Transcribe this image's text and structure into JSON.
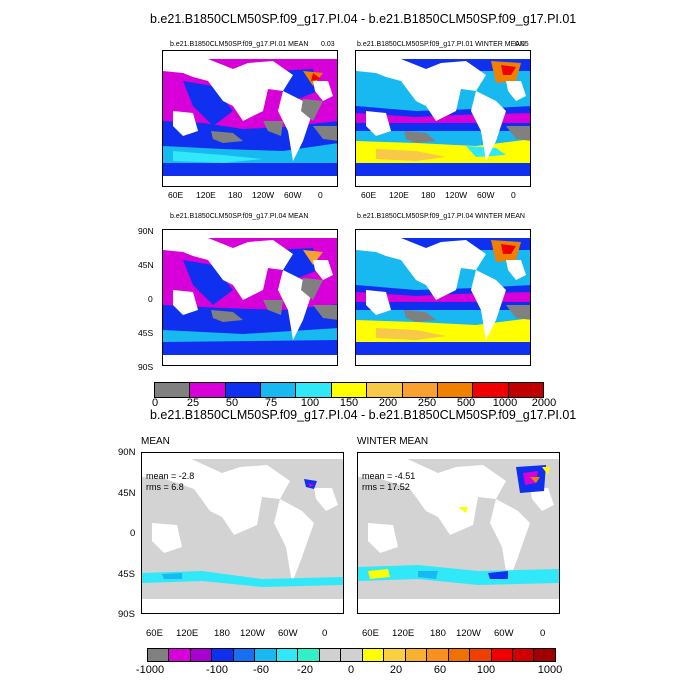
{
  "top": {
    "title": "b.e21.B1850CLM50SP.f09_g17.PI.04 - b.e21.B1850CLM50SP.f09_g17.PI.01",
    "panels": [
      {
        "title": "b.e21.B1850CLM50SP.f09_g17.PI.01 MEAN",
        "corner": "0.03"
      },
      {
        "title": "b.e21.B1850CLM50SP.f09_g17.PI.01 WINTER MEAN",
        "corner": "0.05"
      },
      {
        "title": "b.e21.B1850CLM50SP.f09_g17.PI.04 MEAN",
        "corner": ""
      },
      {
        "title": "b.e21.B1850CLM50SP.f09_g17.PI.04 WINTER MEAN",
        "corner": ""
      }
    ],
    "lon_labels": [
      "60E",
      "120E",
      "180",
      "120W",
      "60W",
      "0"
    ],
    "lat_labels": [
      "90N",
      "45N",
      "0",
      "45S",
      "90S"
    ],
    "colorbar": {
      "colors": [
        "#808080",
        "#d800d8",
        "#a800d0",
        "#1030f0",
        "#18b8f0",
        "#30e8f8",
        "#ffff00",
        "#f8c848",
        "#f8a030",
        "#f08000",
        "#f00000",
        "#c00000"
      ],
      "labels": [
        "0",
        "25",
        "50",
        "75",
        "100",
        "150",
        "200",
        "250",
        "500",
        "1000",
        "2000"
      ]
    }
  },
  "bottom": {
    "title": "b.e21.B1850CLM50SP.f09_g17.PI.04 - b.e21.B1850CLM50SP.f09_g17.PI.01",
    "panels": [
      {
        "title": "MEAN",
        "mean": "mean = -2.8",
        "rms": "rms = 6.8"
      },
      {
        "title": "WINTER MEAN",
        "mean": "mean = -4.51",
        "rms": "rms = 17.52"
      }
    ],
    "lon_labels": [
      "60E",
      "120E",
      "180",
      "120W",
      "60W",
      "0"
    ],
    "lat_labels": [
      "90N",
      "45N",
      "0",
      "45S",
      "90S"
    ],
    "colorbar": {
      "colors": [
        "#808080",
        "#d800d8",
        "#a800d0",
        "#1030f0",
        "#1870f0",
        "#18b8f0",
        "#30e8f8",
        "#30f0c8",
        "#d0d0d0",
        "#d0d0d0",
        "#ffff00",
        "#f8d040",
        "#f8b030",
        "#f89020",
        "#f07000",
        "#f04000",
        "#f00000",
        "#d00000",
        "#a00000"
      ],
      "labels": [
        "-1000",
        "-100",
        "-60",
        "-20",
        "0",
        "20",
        "60",
        "100",
        "1000"
      ]
    }
  },
  "colors": {
    "land": "#ffffff",
    "ocean_grey": "#d3d3d3",
    "missing": "#808080"
  }
}
